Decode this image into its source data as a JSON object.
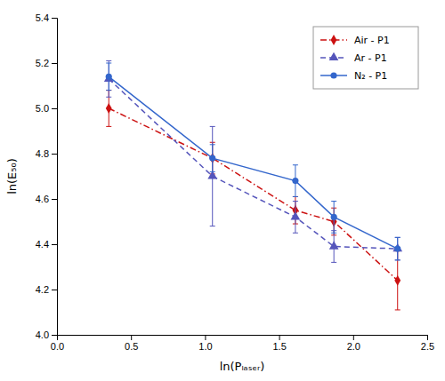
{
  "chart_data": {
    "type": "line",
    "xlabel": "ln(Pₗₐₛₑᵣ)",
    "ylabel": "ln(E₅₀)",
    "x": [
      0.35,
      1.05,
      1.61,
      1.87,
      2.3
    ],
    "series": [
      {
        "name": "Air - P1",
        "color": "#cc1111",
        "marker": "diamond",
        "line_style": "dashdot",
        "values": [
          5.0,
          4.78,
          4.55,
          4.5,
          4.24
        ],
        "errors": [
          0.08,
          0.07,
          0.06,
          0.06,
          0.13
        ]
      },
      {
        "name": "Ar - P1",
        "color": "#5555bb",
        "marker": "triangle",
        "line_style": "dashed",
        "values": [
          5.13,
          4.7,
          4.52,
          4.39,
          4.38
        ],
        "errors": [
          0.08,
          0.22,
          0.07,
          0.07,
          0.05
        ]
      },
      {
        "name": "N₂ - P1",
        "color": "#3366cc",
        "marker": "circle",
        "line_style": "solid",
        "values": [
          5.14,
          4.78,
          4.68,
          4.52,
          4.38
        ],
        "errors": [
          0.06,
          0.06,
          0.07,
          0.07,
          0.05
        ]
      }
    ],
    "xlim": [
      0.0,
      2.5
    ],
    "ylim": [
      4.0,
      5.4
    ],
    "xticks": [
      {
        "value": 0.0,
        "label": "0.0"
      },
      0.5,
      {
        "value": 1.0,
        "label": "1.0"
      },
      1.5,
      {
        "value": 2.0,
        "label": "2.0"
      },
      2.5
    ],
    "yticks": [
      {
        "value": 4.0,
        "label": "4.0"
      },
      4.2,
      4.4,
      4.6,
      4.8,
      {
        "value": 5.0,
        "label": "5.0"
      },
      5.2,
      5.4
    ],
    "grid": false,
    "legend": "upper right"
  }
}
